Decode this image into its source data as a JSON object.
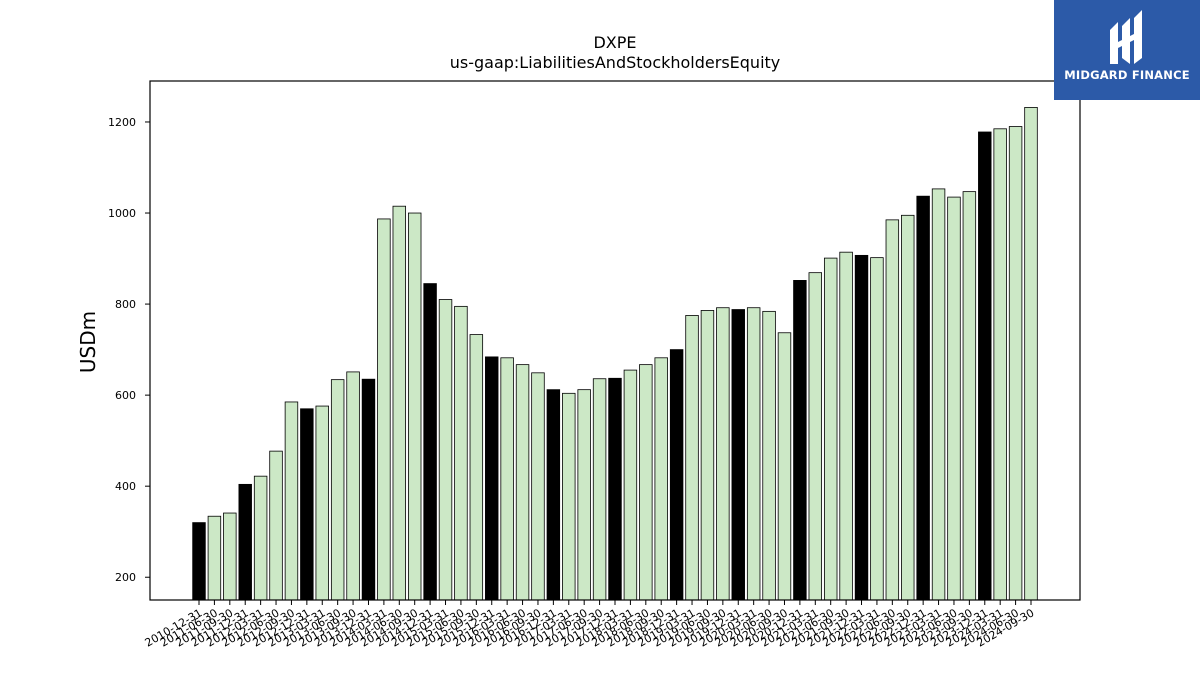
{
  "chart_data": {
    "type": "bar",
    "title": "DXPE",
    "subtitle": "us-gaap:LiabilitiesAndStockholdersEquity",
    "xlabel": "",
    "ylabel": "USDm",
    "ylim": [
      150,
      1290
    ],
    "yticks": [
      200,
      400,
      600,
      800,
      1000,
      1200
    ],
    "categories": [
      "2010-12-31",
      "2011-06-30",
      "2011-09-30",
      "2011-12-31",
      "2012-03-31",
      "2012-06-30",
      "2012-09-30",
      "2012-12-31",
      "2013-03-31",
      "2013-06-30",
      "2013-09-30",
      "2013-12-31",
      "2014-03-31",
      "2014-06-30",
      "2014-09-30",
      "2014-12-31",
      "2015-03-31",
      "2015-06-30",
      "2015-09-30",
      "2015-12-31",
      "2016-03-31",
      "2016-06-30",
      "2016-09-30",
      "2016-12-31",
      "2017-03-31",
      "2017-06-30",
      "2017-09-30",
      "2017-12-31",
      "2018-03-31",
      "2018-06-30",
      "2018-09-30",
      "2018-12-31",
      "2019-03-31",
      "2019-06-30",
      "2019-09-30",
      "2019-12-31",
      "2020-03-31",
      "2020-06-30",
      "2020-09-30",
      "2020-12-31",
      "2021-03-31",
      "2021-06-30",
      "2021-09-30",
      "2021-12-31",
      "2022-03-31",
      "2022-06-30",
      "2022-09-30",
      "2022-12-31",
      "2023-03-31",
      "2023-06-30",
      "2023-09-30",
      "2023-12-31",
      "2024-03-31",
      "2024-06-30",
      "2024-09-30"
    ],
    "values": [
      320,
      334,
      341,
      404,
      422,
      477,
      585,
      570,
      576,
      634,
      651,
      635,
      987,
      1015,
      1000,
      845,
      810,
      795,
      733,
      684,
      682,
      667,
      649,
      612,
      604,
      612,
      636,
      637,
      655,
      667,
      682,
      700,
      775,
      786,
      792,
      788,
      792,
      784,
      737,
      852,
      869,
      901,
      914,
      907,
      902,
      985,
      995,
      1037,
      1053,
      1035,
      1047,
      1178,
      1185,
      1190,
      1232
    ],
    "highlight_categories": [
      "2010-12-31",
      "2011-12-31",
      "2012-12-31",
      "2013-12-31",
      "2014-12-31",
      "2015-12-31",
      "2016-12-31",
      "2017-12-31",
      "2018-12-31",
      "2019-12-31",
      "2020-12-31",
      "2021-12-31",
      "2022-12-31",
      "2023-12-31"
    ],
    "colors": {
      "bar": "#cce8c6",
      "highlight": "#000000",
      "edge": "#000000"
    },
    "grid": false,
    "legend": "none"
  },
  "logo": {
    "text": "MIDGARD FINANCE",
    "background": "#2c5aa8"
  }
}
